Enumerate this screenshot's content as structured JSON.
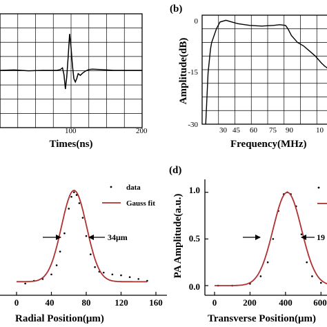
{
  "chart_data": [
    {
      "type": "line",
      "panel_label": "",
      "xlabel": "Times(ns)",
      "ylabel": "",
      "x_ticks": [
        "100",
        "200"
      ],
      "y_ticks": [],
      "xlim": [
        0,
        200
      ],
      "ylim": [
        -1,
        1
      ],
      "grid": true,
      "series": [
        {
          "name": "",
          "x": [
            0,
            20,
            40,
            60,
            80,
            85,
            88,
            90,
            92,
            94,
            96,
            98,
            100,
            102,
            104,
            106,
            108,
            110,
            113,
            116,
            120,
            125,
            130,
            140,
            150,
            160,
            180,
            200
          ],
          "y": [
            0.0,
            0.01,
            -0.01,
            0.0,
            0.0,
            0.02,
            0.06,
            -0.1,
            -0.45,
            -0.15,
            0.35,
            0.88,
            0.55,
            0.1,
            -0.2,
            -0.28,
            -0.2,
            -0.08,
            -0.12,
            -0.07,
            -0.02,
            0.02,
            0.03,
            0.02,
            0.01,
            0.0,
            0.0,
            0.0
          ]
        }
      ]
    },
    {
      "type": "line",
      "panel_label": "(b)",
      "xlabel": "Frequency(MHz)",
      "ylabel": "Amplitude(dB)",
      "x_ticks": [
        "30",
        "45",
        "60",
        "75",
        "90",
        "10"
      ],
      "y_ticks": [
        "0",
        "-15",
        "-30"
      ],
      "xlim": [
        0,
        110
      ],
      "ylim": [
        -30,
        2
      ],
      "grid": true,
      "series": [
        {
          "name": "",
          "x": [
            3,
            5,
            7,
            8,
            10,
            12,
            15,
            20,
            25,
            30,
            40,
            50,
            60,
            65,
            70,
            72,
            75,
            80,
            85,
            90,
            95,
            100,
            103,
            107
          ],
          "y": [
            -30,
            -15,
            -8,
            -6,
            -4,
            -2,
            0,
            0.5,
            0,
            -0.5,
            -1,
            -1.2,
            -1,
            -0.8,
            -1,
            -2,
            -4,
            -6,
            -7,
            -8.5,
            -10,
            -12,
            -13,
            -14
          ]
        }
      ]
    },
    {
      "type": "line",
      "panel_label": "",
      "xlabel": "Radial Position(μm)",
      "ylabel": "",
      "x_ticks": [
        "0",
        "40",
        "80",
        "120",
        "160"
      ],
      "y_ticks": [],
      "xlim": [
        0,
        160
      ],
      "ylim": [
        0,
        1.05
      ],
      "legend": [
        "data",
        "Gauss fit"
      ],
      "annotation": "34μm",
      "series": [
        {
          "name": "data",
          "x": [
            10,
            20,
            30,
            40,
            46,
            50,
            55,
            60,
            63,
            66,
            69,
            72,
            76,
            80,
            85,
            90,
            95,
            100,
            110,
            120,
            130,
            140,
            150
          ],
          "y": [
            0.0,
            0.03,
            0.05,
            0.1,
            0.2,
            0.35,
            0.55,
            0.82,
            0.95,
            1.0,
            0.97,
            0.88,
            0.72,
            0.52,
            0.32,
            0.18,
            0.13,
            0.12,
            0.1,
            0.09,
            0.07,
            0.05,
            0.03
          ]
        },
        {
          "name": "Gauss fit",
          "gauss": {
            "mu": 66,
            "sigma": 14.4,
            "amp": 1.0,
            "offset": 0.02
          },
          "x_range": [
            0,
            150
          ]
        }
      ]
    },
    {
      "type": "line",
      "panel_label": "(d)",
      "xlabel": "Transverse Position(μm)",
      "ylabel": "PA Amplitude(a.u.)",
      "x_ticks": [
        "0",
        "200",
        "400",
        "600"
      ],
      "y_ticks": [
        "1.0",
        "0.5",
        "0.0"
      ],
      "xlim": [
        0,
        700
      ],
      "ylim": [
        0,
        1.05
      ],
      "annotation": "19",
      "series": [
        {
          "name": "",
          "x": [
            20,
            100,
            200,
            260,
            300,
            330,
            360,
            390,
            410,
            430,
            460,
            490,
            520,
            550,
            600,
            650
          ],
          "y": [
            0.0,
            0.0,
            0.02,
            0.1,
            0.25,
            0.5,
            0.8,
            0.98,
            1.0,
            0.98,
            0.85,
            0.55,
            0.25,
            0.1,
            0.03,
            0.01
          ]
        },
        {
          "name": "",
          "gauss": {
            "mu": 410,
            "sigma": 80,
            "amp": 1.0,
            "offset": 0.0
          },
          "x_range": [
            0,
            700
          ]
        }
      ]
    }
  ]
}
